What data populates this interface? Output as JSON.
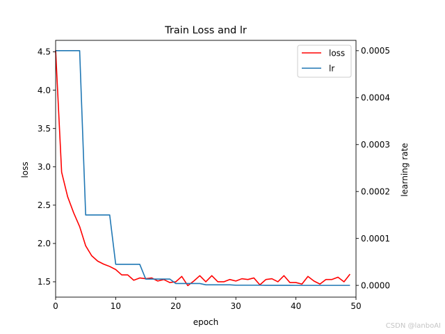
{
  "chart_data": {
    "type": "line",
    "title": "Train Loss and lr",
    "xlabel": "epoch",
    "ylabel": "loss",
    "y2label": "learning rate",
    "xlim": [
      0,
      50
    ],
    "ylim": [
      1.3,
      4.65
    ],
    "y2lim": [
      -2.5e-05,
      0.000522
    ],
    "x_ticks": [
      0,
      10,
      20,
      30,
      40,
      50
    ],
    "y_ticks": [
      1.5,
      2.0,
      2.5,
      3.0,
      3.5,
      4.0,
      4.5
    ],
    "y_tick_labels": [
      "1.5",
      "2.0",
      "2.5",
      "3.0",
      "3.5",
      "4.0",
      "4.5"
    ],
    "y2_ticks": [
      0,
      0.0001,
      0.0002,
      0.0003,
      0.0004,
      0.0005
    ],
    "y2_tick_labels": [
      "0.0000",
      "0.0001",
      "0.0002",
      "0.0003",
      "0.0004",
      "0.0005"
    ],
    "grid": false,
    "legend_position": "top-right",
    "series": [
      {
        "name": "loss",
        "axis": "left",
        "color": "#ff0000",
        "x": [
          0,
          1,
          2,
          3,
          4,
          5,
          6,
          7,
          8,
          9,
          10,
          11,
          12,
          13,
          14,
          15,
          16,
          17,
          18,
          19,
          20,
          21,
          22,
          23,
          24,
          25,
          26,
          27,
          28,
          29,
          30,
          31,
          32,
          33,
          34,
          35,
          36,
          37,
          38,
          39,
          40,
          41,
          42,
          43,
          44,
          45,
          46,
          47,
          48,
          49
        ],
        "values": [
          4.52,
          2.93,
          2.61,
          2.4,
          2.22,
          1.97,
          1.84,
          1.77,
          1.73,
          1.7,
          1.66,
          1.59,
          1.59,
          1.52,
          1.55,
          1.54,
          1.55,
          1.51,
          1.53,
          1.49,
          1.5,
          1.57,
          1.45,
          1.51,
          1.58,
          1.5,
          1.58,
          1.5,
          1.5,
          1.53,
          1.51,
          1.54,
          1.53,
          1.55,
          1.46,
          1.53,
          1.54,
          1.5,
          1.58,
          1.49,
          1.49,
          1.47,
          1.57,
          1.51,
          1.47,
          1.53,
          1.53,
          1.56,
          1.5,
          1.6
        ]
      },
      {
        "name": "lr",
        "axis": "right",
        "color": "#1f77b4",
        "x": [
          0,
          1,
          2,
          3,
          4,
          5,
          6,
          7,
          8,
          9,
          10,
          11,
          12,
          13,
          14,
          15,
          16,
          17,
          18,
          19,
          20,
          21,
          22,
          23,
          24,
          25,
          26,
          27,
          28,
          29,
          30,
          31,
          32,
          33,
          34,
          35,
          36,
          37,
          38,
          39,
          40,
          41,
          42,
          43,
          44,
          45,
          46,
          47,
          48,
          49
        ],
        "values": [
          0.0005,
          0.0005,
          0.0005,
          0.0005,
          0.0005,
          0.00015,
          0.00015,
          0.00015,
          0.00015,
          0.00015,
          4.5e-05,
          4.5e-05,
          4.5e-05,
          4.5e-05,
          4.5e-05,
          1.35e-05,
          1.35e-05,
          1.35e-05,
          1.35e-05,
          1.35e-05,
          4e-06,
          4e-06,
          4e-06,
          4e-06,
          4e-06,
          1.2e-06,
          1.2e-06,
          1.2e-06,
          1.2e-06,
          1.2e-06,
          4e-07,
          4e-07,
          4e-07,
          4e-07,
          4e-07,
          1e-07,
          1e-07,
          1e-07,
          1e-07,
          1e-07,
          3e-08,
          3e-08,
          3e-08,
          3e-08,
          3e-08,
          1e-08,
          1e-08,
          1e-08,
          1e-08,
          1e-08
        ]
      }
    ]
  },
  "watermark": "CSDN @lanboAI"
}
